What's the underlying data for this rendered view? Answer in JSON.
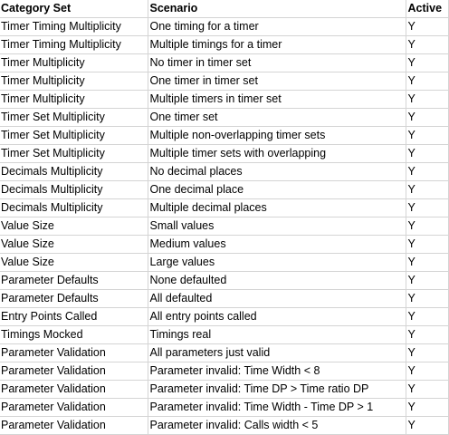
{
  "table": {
    "headers": [
      "Category Set",
      "Scenario",
      "Active"
    ],
    "rows": [
      [
        "Timer Timing Multiplicity",
        "One timing for a timer",
        "Y"
      ],
      [
        "Timer Timing Multiplicity",
        "Multiple timings for a timer",
        "Y"
      ],
      [
        "Timer Multiplicity",
        "No timer in timer set",
        "Y"
      ],
      [
        "Timer Multiplicity",
        "One timer in timer set",
        "Y"
      ],
      [
        "Timer Multiplicity",
        "Multiple timers in timer set",
        "Y"
      ],
      [
        "Timer Set Multiplicity",
        "One timer set",
        "Y"
      ],
      [
        "Timer Set Multiplicity",
        "Multiple non-overlapping timer sets",
        "Y"
      ],
      [
        "Timer Set Multiplicity",
        "Multiple timer sets with overlapping",
        "Y"
      ],
      [
        "Decimals Multiplicity",
        "No decimal places",
        "Y"
      ],
      [
        "Decimals Multiplicity",
        "One decimal place",
        "Y"
      ],
      [
        "Decimals Multiplicity",
        "Multiple decimal places",
        "Y"
      ],
      [
        "Value Size",
        "Small values",
        "Y"
      ],
      [
        "Value Size",
        "Medium values",
        "Y"
      ],
      [
        "Value Size",
        "Large values",
        "Y"
      ],
      [
        "Parameter Defaults",
        "None defaulted",
        "Y"
      ],
      [
        "Parameter Defaults",
        "All defaulted",
        "Y"
      ],
      [
        "Entry Points Called",
        "All entry points called",
        "Y"
      ],
      [
        "Timings Mocked",
        "Timings real",
        "Y"
      ],
      [
        "Parameter Validation",
        "All parameters just valid",
        "Y"
      ],
      [
        "Parameter Validation",
        "Parameter invalid: Time Width < 8",
        "Y"
      ],
      [
        "Parameter Validation",
        "Parameter invalid: Time DP > Time ratio DP",
        "Y"
      ],
      [
        "Parameter Validation",
        "Parameter invalid: Time Width - Time DP > 1",
        "Y"
      ],
      [
        "Parameter Validation",
        "Parameter invalid: Calls width < 5",
        "Y"
      ]
    ]
  }
}
